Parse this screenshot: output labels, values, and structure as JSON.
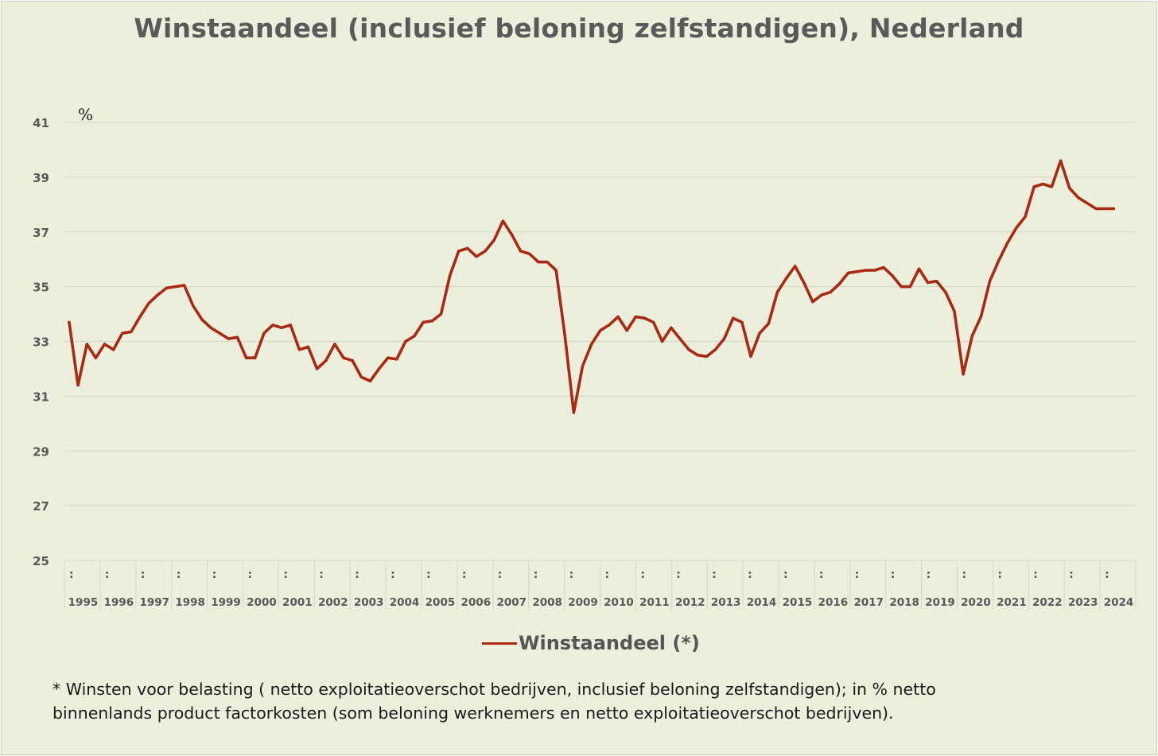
{
  "chart_data": {
    "type": "line",
    "title": "Winstaandeel (inclusief beloning zelfstandigen), Nederland",
    "ylabel": "%",
    "ylim": [
      25,
      41
    ],
    "yticks": [
      25,
      27,
      29,
      31,
      33,
      35,
      37,
      39,
      41
    ],
    "grid": true,
    "legend_position": "bottom",
    "years": [
      "1995",
      "1996",
      "1997",
      "1998",
      "1999",
      "2000",
      "2001",
      "2002",
      "2003",
      "2004",
      "2005",
      "2006",
      "2007",
      "2008",
      "2009",
      "2010",
      "2011",
      "2012",
      "2013",
      "2014",
      "2015",
      "2016",
      "2017",
      "2018",
      "2019",
      "2020",
      "2021",
      "2022",
      "2023",
      "2024"
    ],
    "quarter_marker": ":",
    "series": [
      {
        "name": "Winstaandeel (*)",
        "color": "#a82a14",
        "values": [
          33.7,
          31.4,
          32.9,
          32.4,
          32.9,
          32.7,
          33.3,
          33.35,
          33.9,
          34.4,
          34.7,
          34.95,
          35.0,
          35.05,
          34.3,
          33.8,
          33.5,
          33.3,
          33.1,
          33.15,
          32.4,
          32.4,
          33.3,
          33.6,
          33.5,
          33.6,
          32.7,
          32.8,
          32.0,
          32.3,
          32.9,
          32.4,
          32.3,
          31.7,
          31.55,
          32.0,
          32.4,
          32.35,
          33.0,
          33.2,
          33.7,
          33.75,
          34.0,
          35.4,
          36.3,
          36.4,
          36.1,
          36.3,
          36.7,
          37.4,
          36.9,
          36.3,
          36.2,
          35.9,
          35.9,
          35.6,
          33.2,
          30.4,
          32.1,
          32.9,
          33.4,
          33.6,
          33.9,
          33.4,
          33.9,
          33.85,
          33.7,
          33.0,
          33.5,
          33.1,
          32.7,
          32.5,
          32.45,
          32.7,
          33.1,
          33.85,
          33.7,
          32.45,
          33.3,
          33.65,
          34.8,
          35.3,
          35.75,
          35.15,
          34.45,
          34.7,
          34.8,
          35.1,
          35.5,
          35.55,
          35.6,
          35.6,
          35.7,
          35.4,
          35.0,
          35.0,
          35.65,
          35.15,
          35.2,
          34.8,
          34.1,
          31.8,
          33.2,
          33.9,
          35.2,
          35.95,
          36.6,
          37.15,
          37.55,
          38.65,
          38.75,
          38.65,
          39.6,
          38.6,
          38.25,
          38.05,
          37.85,
          37.85,
          37.85
        ]
      }
    ]
  },
  "footnote": {
    "line1": "* Winsten voor belasting ( netto exploitatieoverschot bedrijven, inclusief beloning zelfstandigen); in % netto",
    "line2": "binnenlands product factorkosten (som beloning werknemers en netto exploitatieoverschot bedrijven)."
  }
}
